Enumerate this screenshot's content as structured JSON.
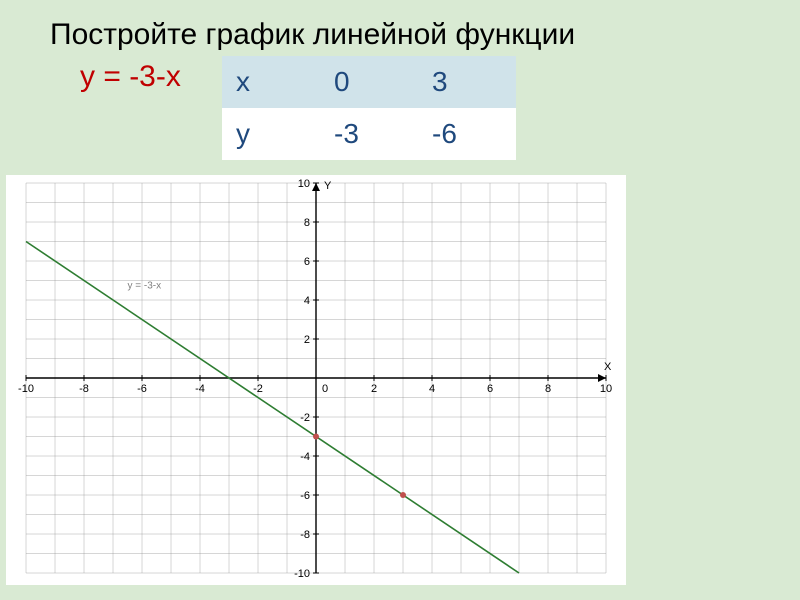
{
  "title": "Постройте график линейной функции",
  "equation": "у = -3-х",
  "table": {
    "headers": [
      "х",
      "0",
      "3"
    ],
    "row_label": "у",
    "row_values": [
      "-3",
      "-6"
    ]
  },
  "chart": {
    "type": "line",
    "x_label": "X",
    "y_label": "Y",
    "line_label": "y = -3-x",
    "xlim": [
      -10,
      10
    ],
    "ylim": [
      -10,
      10
    ],
    "xtick_step": 2,
    "ytick_step": 2,
    "tick_labels_x": [
      -10,
      -8,
      -6,
      -4,
      -2,
      0,
      2,
      4,
      6,
      8,
      10
    ],
    "tick_labels_y": [
      -10,
      -8,
      -6,
      -4,
      -2,
      0,
      2,
      4,
      6,
      8,
      10
    ],
    "minor_grid": true,
    "points": [
      {
        "x": 0,
        "y": -3
      },
      {
        "x": 3,
        "y": -6
      }
    ],
    "line_endpoints": [
      {
        "x": -10,
        "y": 7
      },
      {
        "x": 7,
        "y": -10
      }
    ],
    "colors": {
      "background": "#ffffff",
      "grid": "#7f7f7f",
      "axis": "#000000",
      "line": "#2e7d32",
      "point": "#c0504d",
      "tick_text": "#000000",
      "label_text": "#7f7f7f"
    },
    "line_width": 1.6,
    "point_radius": 3,
    "tick_fontsize": 11,
    "label_fontsize": 11
  },
  "page_background": "#d9ead3"
}
